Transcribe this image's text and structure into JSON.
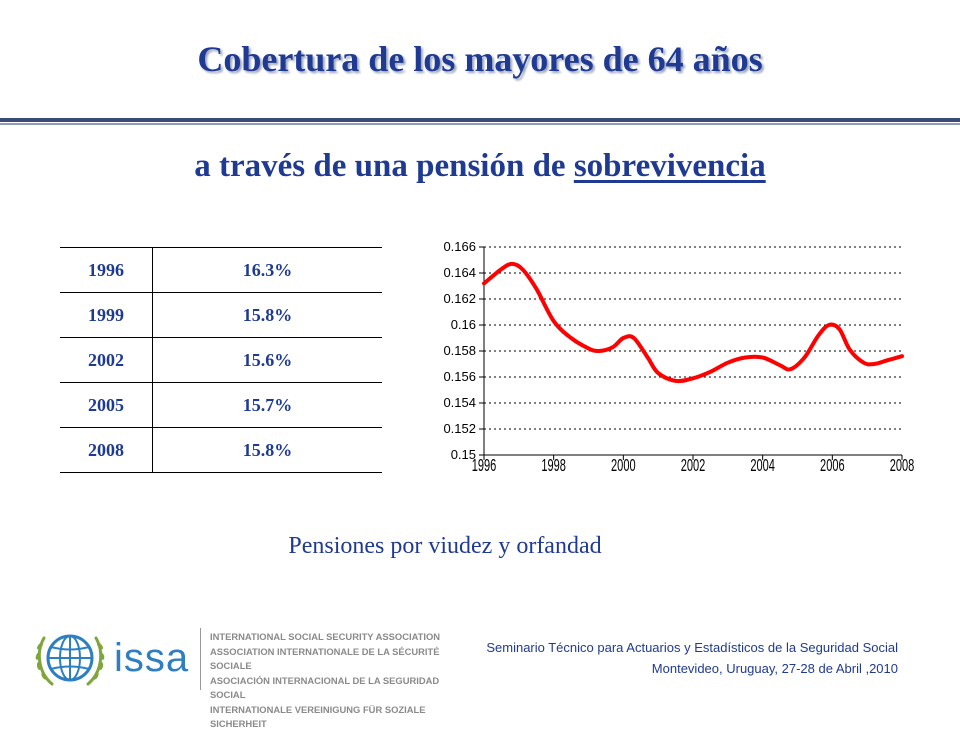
{
  "title": "Cobertura  de los mayores de 64 años",
  "subtitle": {
    "prefix": "a través de una pensión de ",
    "highlight": "sobrevivencia"
  },
  "table": {
    "rows": [
      {
        "year": "1996",
        "value": "16.3%"
      },
      {
        "year": "1999",
        "value": "15.8%"
      },
      {
        "year": "2002",
        "value": "15.6%"
      },
      {
        "year": "2005",
        "value": "15.7%"
      },
      {
        "year": "2008",
        "value": "15.8%"
      }
    ]
  },
  "chart_data": {
    "type": "line",
    "x": [
      1996,
      1996.5,
      1996.8,
      1997.1,
      1997.5,
      1998,
      1998.5,
      1999,
      1999.3,
      1999.7,
      2000,
      2000.3,
      2000.7,
      2001,
      2001.5,
      2002,
      2002.5,
      2003,
      2003.5,
      2004,
      2004.5,
      2004.8,
      2005.2,
      2005.6,
      2005.9,
      2006.2,
      2006.5,
      2006.9,
      2007.2,
      2007.6,
      2008
    ],
    "series": [
      {
        "color": "#ff0000",
        "values": [
          0.1632,
          0.1643,
          0.1647,
          0.1643,
          0.1628,
          0.1603,
          0.159,
          0.1582,
          0.158,
          0.1583,
          0.159,
          0.159,
          0.1575,
          0.1563,
          0.1557,
          0.1559,
          0.1564,
          0.1571,
          0.1575,
          0.1575,
          0.1569,
          0.1566,
          0.1575,
          0.1592,
          0.16,
          0.1597,
          0.1581,
          0.1571,
          0.157,
          0.1573,
          0.1576
        ]
      }
    ],
    "xticks": [
      "1996",
      "1998",
      "2000",
      "2002",
      "2004",
      "2006",
      "2008"
    ],
    "yticks": [
      "0.15",
      "0.152",
      "0.154",
      "0.156",
      "0.158",
      "0.16",
      "0.162",
      "0.164",
      "0.166"
    ],
    "xlim": [
      1996,
      2008
    ],
    "ylim": [
      0.15,
      0.166
    ],
    "grid": true,
    "title": "",
    "xlabel": "",
    "ylabel": ""
  },
  "caption": "Pensiones por viudez y orfandad",
  "logo": {
    "wordmark": "issa",
    "lines": [
      "INTERNATIONAL SOCIAL SECURITY ASSOCIATION",
      "ASSOCIATION INTERNATIONALE DE LA SÉCURITÉ SOCIALE",
      "ASOCIACIÓN INTERNACIONAL DE LA SEGURIDAD SOCIAL",
      "INTERNATIONALE VEREINIGUNG FÜR SOZIALE SICHERHEIT"
    ]
  },
  "footer": {
    "line1": "Seminario Técnico para Actuarios y Estadísticos de la Seguridad Social",
    "line2": "Montevideo, Uruguay, 27-28 de Abril ,2010"
  },
  "colors": {
    "title": "#1f3a93",
    "series": "#ff0000",
    "logo": "#2e7fc1"
  }
}
